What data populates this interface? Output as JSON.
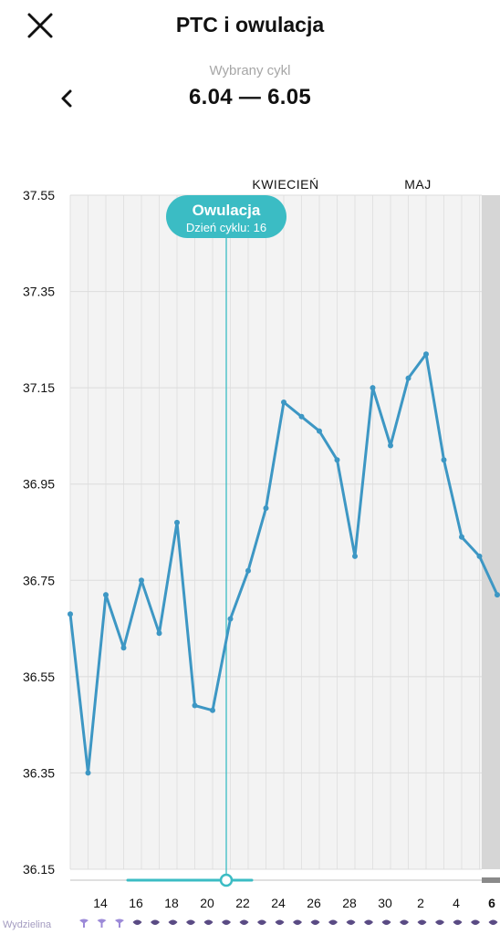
{
  "header": {
    "title": "PTC i owulacja",
    "close_icon": "close-icon"
  },
  "cycle": {
    "label": "Wybrany cykl",
    "range": "6.04 — 6.05",
    "back_icon": "chevron-left-icon"
  },
  "colors": {
    "line": "#3d97c4",
    "ovulation": "#3bbcc4",
    "mucus_light": "#9c8ad8",
    "mucus_dark": "#5a4b84"
  },
  "chart_data": {
    "type": "line",
    "ylim": [
      36.15,
      37.55
    ],
    "y_ticks": [
      "37.55",
      "37.35",
      "37.15",
      "36.95",
      "36.75",
      "36.55",
      "36.35",
      "36.15"
    ],
    "x_labels": [
      "14",
      "16",
      "18",
      "20",
      "22",
      "24",
      "26",
      "28",
      "30",
      "2",
      "4",
      "6"
    ],
    "month_labels": [
      "KWIECIEŃ",
      "MAJ"
    ],
    "series": [
      {
        "values": [
          36.68,
          36.35,
          36.72,
          36.61,
          36.75,
          36.64,
          36.87,
          36.49,
          36.48,
          36.67,
          36.77,
          36.9,
          37.12,
          37.09,
          37.06,
          37.0,
          36.8,
          37.15,
          37.03,
          37.17,
          37.22,
          37.0,
          36.84,
          36.8,
          36.72
        ]
      }
    ],
    "ovulation": {
      "title": "Owulacja",
      "subtitle": "Dzień cyklu: 16"
    },
    "mucus": {
      "label": "Wydzielina",
      "icons": [
        "mucus-light-icon",
        "mucus-light-icon",
        "mucus-light-icon",
        "mucus-dark-icon",
        "mucus-dark-icon",
        "mucus-dark-icon",
        "mucus-dark-icon",
        "mucus-dark-icon",
        "mucus-dark-icon",
        "mucus-dark-icon",
        "mucus-dark-icon",
        "mucus-dark-icon",
        "mucus-dark-icon",
        "mucus-dark-icon",
        "mucus-dark-icon",
        "mucus-dark-icon",
        "mucus-dark-icon",
        "mucus-dark-icon",
        "mucus-dark-icon",
        "mucus-dark-icon",
        "mucus-dark-icon",
        "mucus-dark-icon",
        "mucus-dark-icon",
        "mucus-dark-icon"
      ]
    }
  }
}
